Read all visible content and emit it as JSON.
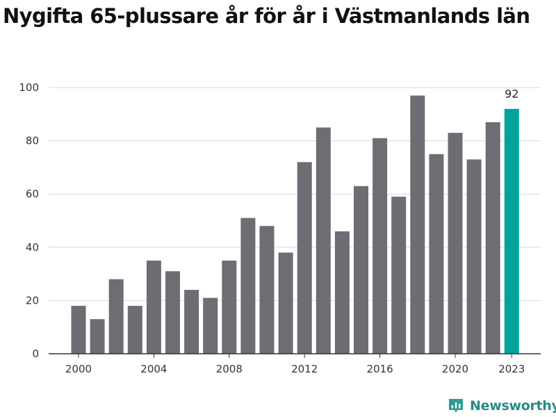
{
  "title": "Nygifta 65-plussare år för år i Västmanlands län",
  "brand": {
    "name": "Newsworthy",
    "icon": "newsworthy-logo-icon",
    "color": "#2a9d94"
  },
  "colors": {
    "bar": "#6e6d73",
    "highlight": "#00a39a",
    "grid": "#d9d9d9",
    "axis": "#333333"
  },
  "chart_data": {
    "type": "bar",
    "title": "Nygifta 65-plussare år för år i Västmanlands län",
    "xlabel": "",
    "ylabel": "",
    "categories": [
      2000,
      2001,
      2002,
      2003,
      2004,
      2005,
      2006,
      2007,
      2008,
      2009,
      2010,
      2011,
      2012,
      2013,
      2014,
      2015,
      2016,
      2017,
      2018,
      2019,
      2020,
      2021,
      2022,
      2023
    ],
    "values": [
      18,
      13,
      28,
      18,
      35,
      31,
      24,
      21,
      35,
      51,
      48,
      38,
      72,
      85,
      46,
      63,
      81,
      59,
      97,
      75,
      83,
      73,
      87,
      92
    ],
    "ylim": [
      0,
      100
    ],
    "yticks": [
      0,
      20,
      40,
      60,
      80,
      100
    ],
    "xticks": [
      2000,
      2004,
      2008,
      2012,
      2016,
      2020,
      2023
    ],
    "highlight": {
      "category": 2023,
      "label": "92"
    },
    "grid": true,
    "legend": "none"
  }
}
